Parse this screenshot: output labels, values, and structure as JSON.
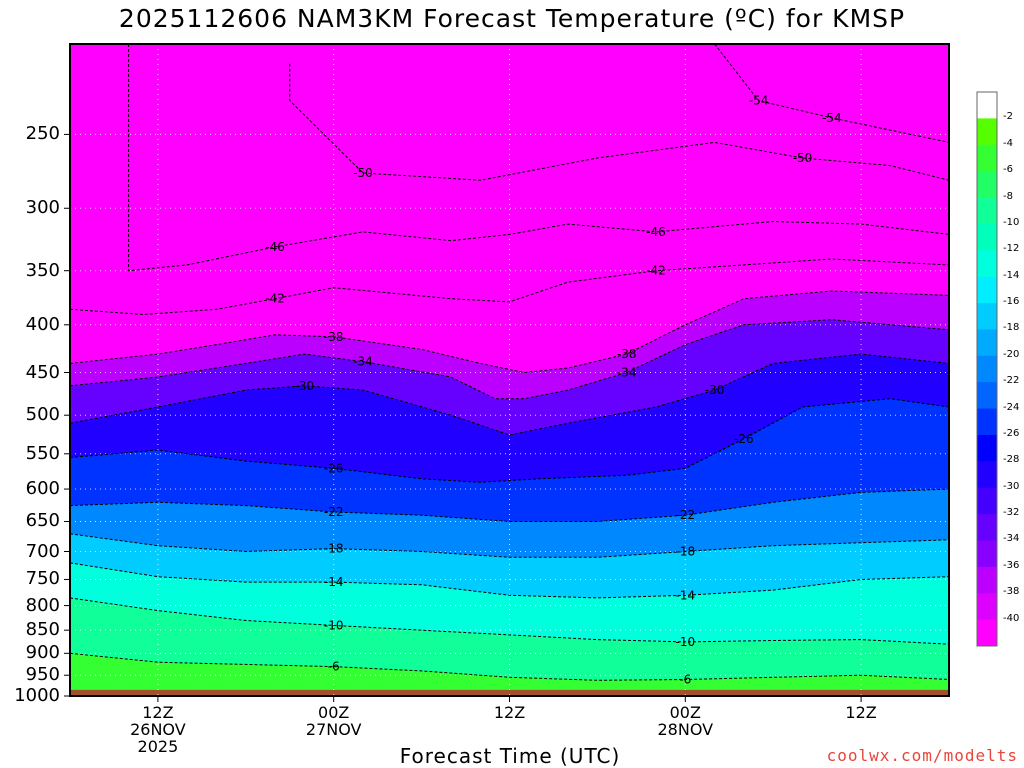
{
  "title": "2025112606 NAM3KM Forecast Temperature (ºC) for KMSP",
  "credit": "coolwx.com/modelts",
  "colors": {
    "ground": "#a0522d",
    "frame": "#000000"
  },
  "chart_data": {
    "type": "time-height contour",
    "xlabel": "Forecast Time (UTC)",
    "ylabel": "",
    "y_axis": "pressure (hPa), inverted",
    "ylim": [
      1000,
      200
    ],
    "y_ticks": [
      "250",
      "300",
      "350",
      "400",
      "450",
      "500",
      "550",
      "600",
      "650",
      "700",
      "750",
      "800",
      "850",
      "900",
      "950",
      "1000"
    ],
    "x_ticks": [
      {
        "line1": "12Z",
        "line2": "26NOV",
        "line3": "2025"
      },
      {
        "line1": "00Z",
        "line2": "27NOV",
        "line3": ""
      },
      {
        "line1": "12Z",
        "line2": "",
        "line3": ""
      },
      {
        "line1": "00Z",
        "line2": "28NOV",
        "line3": ""
      },
      {
        "line1": "12Z",
        "line2": "",
        "line3": ""
      }
    ],
    "x_tick_hours": [
      6,
      18,
      30,
      42,
      54
    ],
    "xlim_hours": [
      0,
      60
    ],
    "grid": true,
    "colorbar": {
      "labels": [
        "-2",
        "-4",
        "-6",
        "-8",
        "-10",
        "-12",
        "-14",
        "-16",
        "-18",
        "-20",
        "-22",
        "-24",
        "-26",
        "-28",
        "-30",
        "-32",
        "-34",
        "-36",
        "-38",
        "-40"
      ],
      "colors": [
        "#ffffff",
        "#55ff00",
        "#33ff33",
        "#22ff66",
        "#11ff99",
        "#00ffbb",
        "#00ffdd",
        "#00eeff",
        "#00ccff",
        "#00aaff",
        "#0088ff",
        "#0066ff",
        "#0033ff",
        "#0000ff",
        "#2200ff",
        "#4400ff",
        "#6600ff",
        "#8800ff",
        "#bb00ff",
        "#dd00ff",
        "#ff00ff"
      ]
    },
    "contours": [
      {
        "label": "-54",
        "points": [
          [
            44,
            200
          ],
          [
            47,
            230
          ],
          [
            52,
            240
          ],
          [
            60,
            255
          ]
        ]
      },
      {
        "label": "-50",
        "points": [
          [
            15,
            210
          ],
          [
            15,
            230
          ],
          [
            20,
            275
          ],
          [
            28,
            280
          ],
          [
            36,
            265
          ],
          [
            44,
            255
          ],
          [
            50,
            265
          ],
          [
            56,
            270
          ],
          [
            60,
            280
          ]
        ]
      },
      {
        "label": "-46",
        "points": [
          [
            4,
            200
          ],
          [
            4,
            350
          ],
          [
            8,
            345
          ],
          [
            14,
            330
          ],
          [
            20,
            318
          ],
          [
            26,
            325
          ],
          [
            30,
            320
          ],
          [
            34,
            312
          ],
          [
            40,
            318
          ],
          [
            48,
            310
          ],
          [
            54,
            312
          ],
          [
            60,
            320
          ]
        ]
      },
      {
        "label": "-42",
        "points": [
          [
            0,
            385
          ],
          [
            5,
            390
          ],
          [
            10,
            385
          ],
          [
            14,
            375
          ],
          [
            18,
            365
          ],
          [
            22,
            370
          ],
          [
            26,
            375
          ],
          [
            30,
            378
          ],
          [
            34,
            360
          ],
          [
            40,
            350
          ],
          [
            46,
            345
          ],
          [
            52,
            340
          ],
          [
            60,
            345
          ]
        ]
      },
      {
        "label": "-38",
        "points": [
          [
            0,
            440
          ],
          [
            6,
            430
          ],
          [
            10,
            420
          ],
          [
            14,
            410
          ],
          [
            18,
            412
          ],
          [
            24,
            425
          ],
          [
            28,
            440
          ],
          [
            31,
            450
          ],
          [
            34,
            445
          ],
          [
            38,
            430
          ],
          [
            42,
            400
          ],
          [
            46,
            375
          ],
          [
            52,
            368
          ],
          [
            60,
            372
          ]
        ]
      },
      {
        "label": "-34",
        "points": [
          [
            0,
            465
          ],
          [
            6,
            455
          ],
          [
            12,
            440
          ],
          [
            16,
            430
          ],
          [
            20,
            438
          ],
          [
            26,
            455
          ],
          [
            29,
            480
          ],
          [
            31,
            480
          ],
          [
            34,
            470
          ],
          [
            38,
            450
          ],
          [
            42,
            420
          ],
          [
            46,
            400
          ],
          [
            52,
            395
          ],
          [
            60,
            405
          ]
        ]
      },
      {
        "label": "-30",
        "points": [
          [
            0,
            510
          ],
          [
            6,
            490
          ],
          [
            12,
            470
          ],
          [
            16,
            465
          ],
          [
            20,
            470
          ],
          [
            26,
            500
          ],
          [
            30,
            525
          ],
          [
            34,
            510
          ],
          [
            40,
            490
          ],
          [
            44,
            470
          ],
          [
            48,
            440
          ],
          [
            54,
            430
          ],
          [
            60,
            440
          ]
        ]
      },
      {
        "label": "-26",
        "points": [
          [
            0,
            555
          ],
          [
            6,
            545
          ],
          [
            12,
            560
          ],
          [
            18,
            570
          ],
          [
            24,
            585
          ],
          [
            28,
            590
          ],
          [
            32,
            585
          ],
          [
            38,
            580
          ],
          [
            42,
            570
          ],
          [
            46,
            530
          ],
          [
            50,
            490
          ],
          [
            56,
            480
          ],
          [
            60,
            490
          ]
        ]
      },
      {
        "label": "-22",
        "points": [
          [
            0,
            625
          ],
          [
            6,
            620
          ],
          [
            12,
            625
          ],
          [
            18,
            635
          ],
          [
            24,
            640
          ],
          [
            30,
            650
          ],
          [
            36,
            650
          ],
          [
            42,
            640
          ],
          [
            48,
            620
          ],
          [
            54,
            605
          ],
          [
            60,
            600
          ]
        ]
      },
      {
        "label": "-18",
        "points": [
          [
            0,
            670
          ],
          [
            6,
            690
          ],
          [
            12,
            700
          ],
          [
            18,
            695
          ],
          [
            24,
            700
          ],
          [
            30,
            710
          ],
          [
            36,
            710
          ],
          [
            42,
            700
          ],
          [
            48,
            690
          ],
          [
            54,
            685
          ],
          [
            60,
            680
          ]
        ]
      },
      {
        "label": "-14",
        "points": [
          [
            0,
            720
          ],
          [
            6,
            745
          ],
          [
            12,
            755
          ],
          [
            18,
            755
          ],
          [
            24,
            760
          ],
          [
            30,
            780
          ],
          [
            36,
            785
          ],
          [
            42,
            780
          ],
          [
            48,
            770
          ],
          [
            54,
            750
          ],
          [
            60,
            745
          ]
        ]
      },
      {
        "label": "-10",
        "points": [
          [
            0,
            785
          ],
          [
            6,
            810
          ],
          [
            12,
            830
          ],
          [
            18,
            840
          ],
          [
            24,
            850
          ],
          [
            30,
            860
          ],
          [
            36,
            870
          ],
          [
            42,
            875
          ],
          [
            48,
            872
          ],
          [
            54,
            870
          ],
          [
            60,
            880
          ]
        ]
      },
      {
        "label": "-6",
        "points": [
          [
            0,
            900
          ],
          [
            6,
            920
          ],
          [
            12,
            925
          ],
          [
            18,
            930
          ],
          [
            24,
            940
          ],
          [
            30,
            955
          ],
          [
            36,
            962
          ],
          [
            42,
            960
          ],
          [
            48,
            955
          ],
          [
            54,
            950
          ],
          [
            60,
            960
          ]
        ]
      }
    ]
  }
}
